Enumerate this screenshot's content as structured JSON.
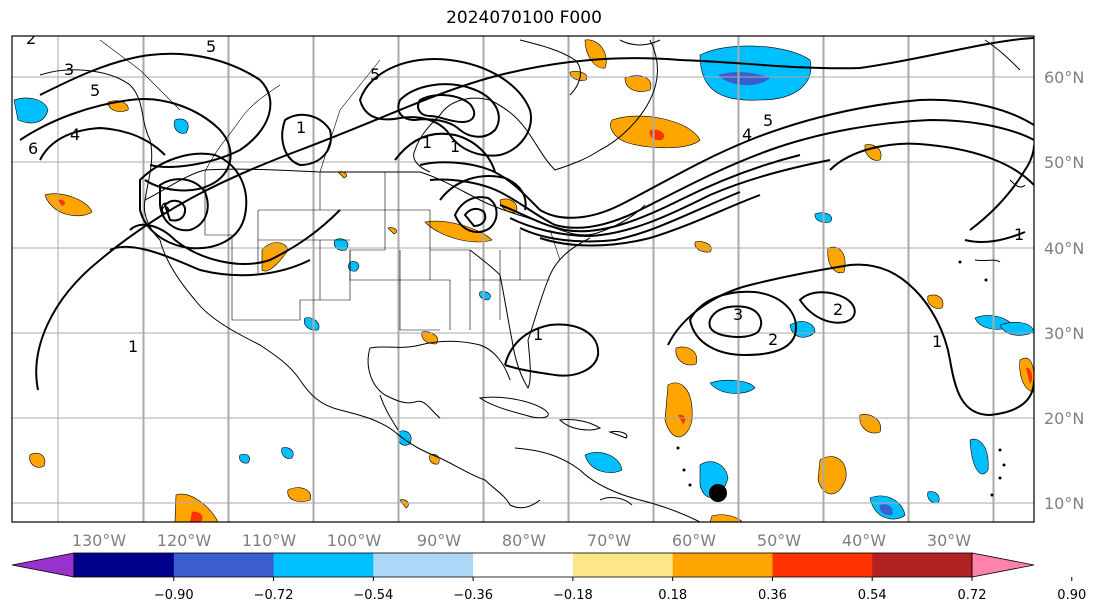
{
  "title": "2024070100 F000",
  "map": {
    "lon_labels": [
      "130°W",
      "120°W",
      "110°W",
      "100°W",
      "90°W",
      "80°W",
      "70°W",
      "60°W",
      "50°W",
      "40°W",
      "30°W"
    ],
    "lat_labels": [
      "60°N",
      "50°N",
      "40°N",
      "30°N",
      "20°N",
      "10°N"
    ],
    "contour_labels": [
      "2",
      "3",
      "5",
      "5",
      "5",
      "1",
      "4",
      "6",
      "6",
      "1",
      "1",
      "1",
      "1",
      "3",
      "2",
      "2",
      "1",
      "1",
      "4",
      "5"
    ],
    "colors": {
      "neg_light": "#add8f8",
      "neg_mid": "#00bfff",
      "neg_strong": "#3a5fcd",
      "pos_light": "#fde68a",
      "pos_mid": "#ffa500",
      "pos_strong": "#ff3300"
    }
  },
  "colorbar": {
    "ticks": [
      "−0.90",
      "−0.72",
      "−0.54",
      "−0.36",
      "−0.18",
      "0.18",
      "0.36",
      "0.54",
      "0.72",
      "0.90"
    ],
    "colors": [
      "#9932cc",
      "#00008b",
      "#3a5fcd",
      "#00bfff",
      "#add8f8",
      "#ffffff",
      "#fde68a",
      "#ffa500",
      "#ff3300",
      "#b22222",
      "#ff82ab"
    ]
  }
}
